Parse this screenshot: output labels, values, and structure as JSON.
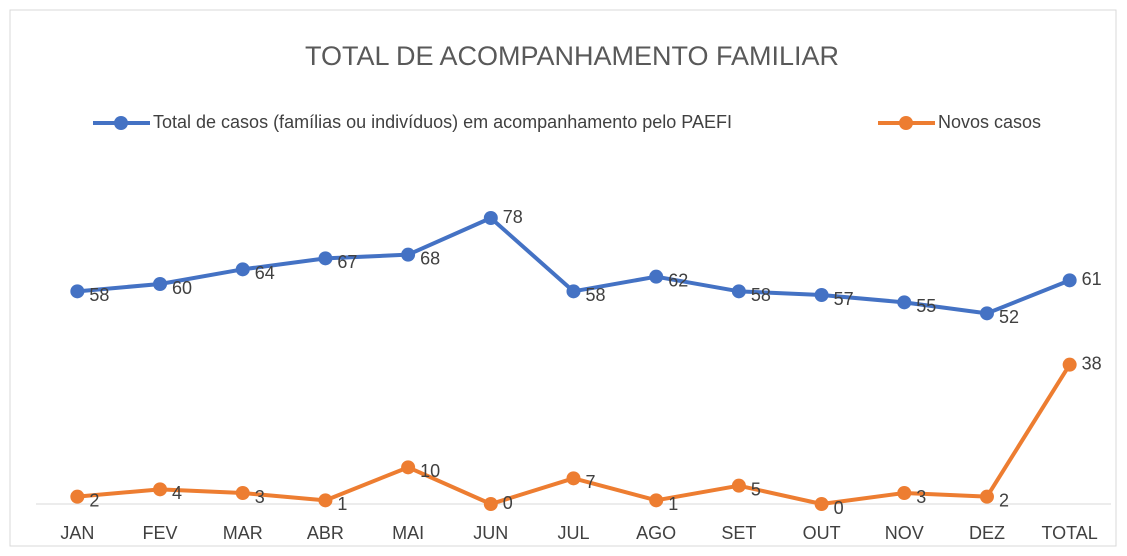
{
  "chart_data": {
    "type": "line",
    "title": "TOTAL DE ACOMPANHAMENTO FAMILIAR",
    "categories": [
      "JAN",
      "FEV",
      "MAR",
      "ABR",
      "MAI",
      "JUN",
      "JUL",
      "AGO",
      "SET",
      "OUT",
      "NOV",
      "DEZ",
      "TOTAL"
    ],
    "series": [
      {
        "name": "Total de casos (famílias ou indivíduos) em acompanhamento pelo PAEFI",
        "color": "#4472c4",
        "values": [
          58,
          60,
          64,
          67,
          68,
          78,
          58,
          62,
          58,
          57,
          55,
          52,
          61
        ]
      },
      {
        "name": "Novos casos",
        "color": "#ed7d31",
        "values": [
          2,
          4,
          3,
          1,
          10,
          0,
          7,
          1,
          5,
          0,
          3,
          2,
          38
        ]
      }
    ],
    "ylim": [
      0,
      90
    ],
    "grid": false,
    "legend": "top"
  }
}
